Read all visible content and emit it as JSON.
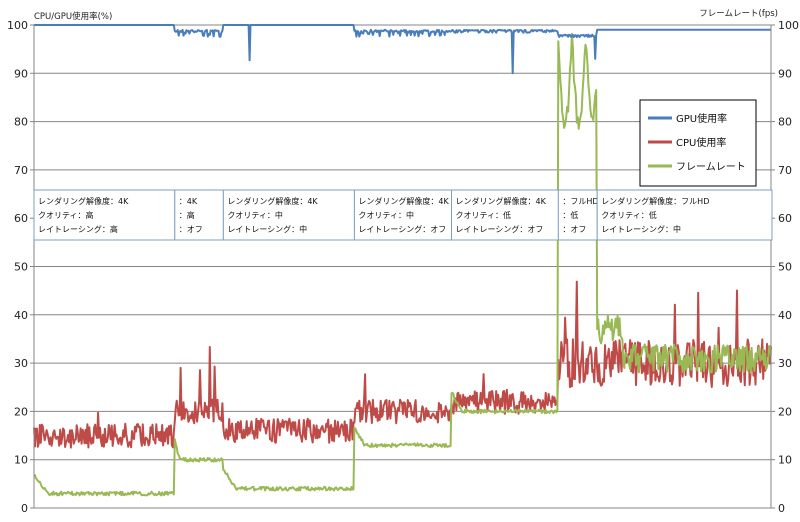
{
  "chart_data": {
    "type": "line",
    "left_axis_title": "CPU/GPU使用率(%)",
    "right_axis_title": "フレームレート(fps)",
    "ylim": [
      0,
      100
    ],
    "y2lim": [
      0,
      100
    ],
    "y_ticks": [
      "0",
      "10",
      "20",
      "30",
      "40",
      "50",
      "60",
      "70",
      "80",
      "90",
      "100"
    ],
    "y2_ticks": [
      "0",
      "10",
      "20",
      "30",
      "40",
      "50",
      "60",
      "70",
      "80",
      "90",
      "100"
    ],
    "grid": true,
    "legend_position": "right",
    "colors": {
      "gpu": "#4a7ebb",
      "cpu": "#be4b48",
      "fps": "#98b954",
      "box_border": "#7f9fc4"
    },
    "series": [
      {
        "name": "GPU使用率",
        "key": "gpu",
        "axis": "left"
      },
      {
        "name": "CPU使用率",
        "key": "cpu",
        "axis": "left"
      },
      {
        "name": "フレームレート",
        "key": "fps",
        "axis": "right"
      }
    ],
    "segments": [
      {
        "start": 0,
        "end": 145,
        "lines": [
          "レンダリング解像度：4K",
          "クオリティ：高",
          "レイトレーシング：高"
        ],
        "gpu": 100,
        "gpu_noise": 0,
        "cpu": 15,
        "fps": 3
      },
      {
        "start": 145,
        "end": 195,
        "lines": [
          "：4K",
          "：高",
          "：オフ"
        ],
        "gpu": 99,
        "gpu_noise": 1.5,
        "cpu": 20,
        "fps": 10
      },
      {
        "start": 195,
        "end": 330,
        "lines": [
          "レンダリング解像度：4K",
          "クオリティ：中",
          "レイトレーシング：中"
        ],
        "gpu": 100,
        "gpu_noise": 0,
        "cpu": 16,
        "fps": 4
      },
      {
        "start": 330,
        "end": 430,
        "lines": [
          "レンダリング解像度：4K",
          "クオリティ：中",
          "レイトレーシング：オフ"
        ],
        "gpu": 99,
        "gpu_noise": 1.5,
        "cpu": 20,
        "fps": 13
      },
      {
        "start": 430,
        "end": 540,
        "lines": [
          "レンダリング解像度：4K",
          "クオリティ：低",
          "レイトレーシング：オフ"
        ],
        "gpu": 99,
        "gpu_noise": 0.6,
        "cpu": 22,
        "fps": 20
      },
      {
        "start": 540,
        "end": 580,
        "lines": [
          "：フルHD",
          "：低",
          "：オフ"
        ],
        "gpu": 98,
        "gpu_noise": 0.5,
        "cpu": 30,
        "fps": 88
      },
      {
        "start": 580,
        "end": 760,
        "lines": [
          "レンダリング解像度：フルHD",
          "クオリティ：低",
          "レイトレーシング：中"
        ],
        "gpu": 99,
        "gpu_noise": 0,
        "cpu": 30,
        "fps": 31
      }
    ],
    "x_points": 760
  }
}
